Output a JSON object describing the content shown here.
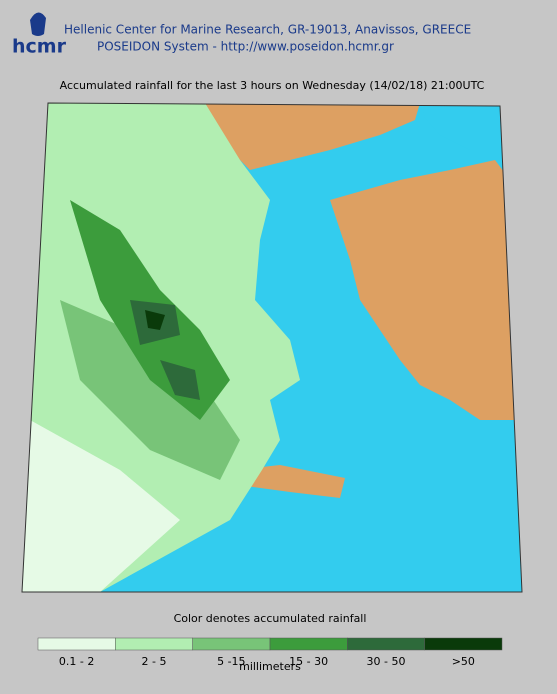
{
  "header": {
    "logo": "hcmr",
    "organization": "Hellenic Center for Marine Research, GR-19013, Anavissos, GREECE",
    "system": "POSEIDON System - http://www.poseidon.hcmr.gr"
  },
  "map": {
    "title": "Accumulated rainfall for the last 3 hours on Wednesday (14/02/18) 21:00UTC"
  },
  "legend": {
    "title": "Color denotes accumulated rainfall",
    "unit": "millimeters",
    "items": [
      {
        "label": "0.1 - 2",
        "color": "#e6fae6"
      },
      {
        "label": "2 - 5",
        "color": "#b2eeb2"
      },
      {
        "label": "5 -15",
        "color": "#78c478"
      },
      {
        "label": "15 - 30",
        "color": "#3c9c3c"
      },
      {
        "label": "30 - 50",
        "color": "#2d6a3a"
      },
      {
        "label": ">50",
        "color": "#0a3a0a"
      }
    ]
  }
}
